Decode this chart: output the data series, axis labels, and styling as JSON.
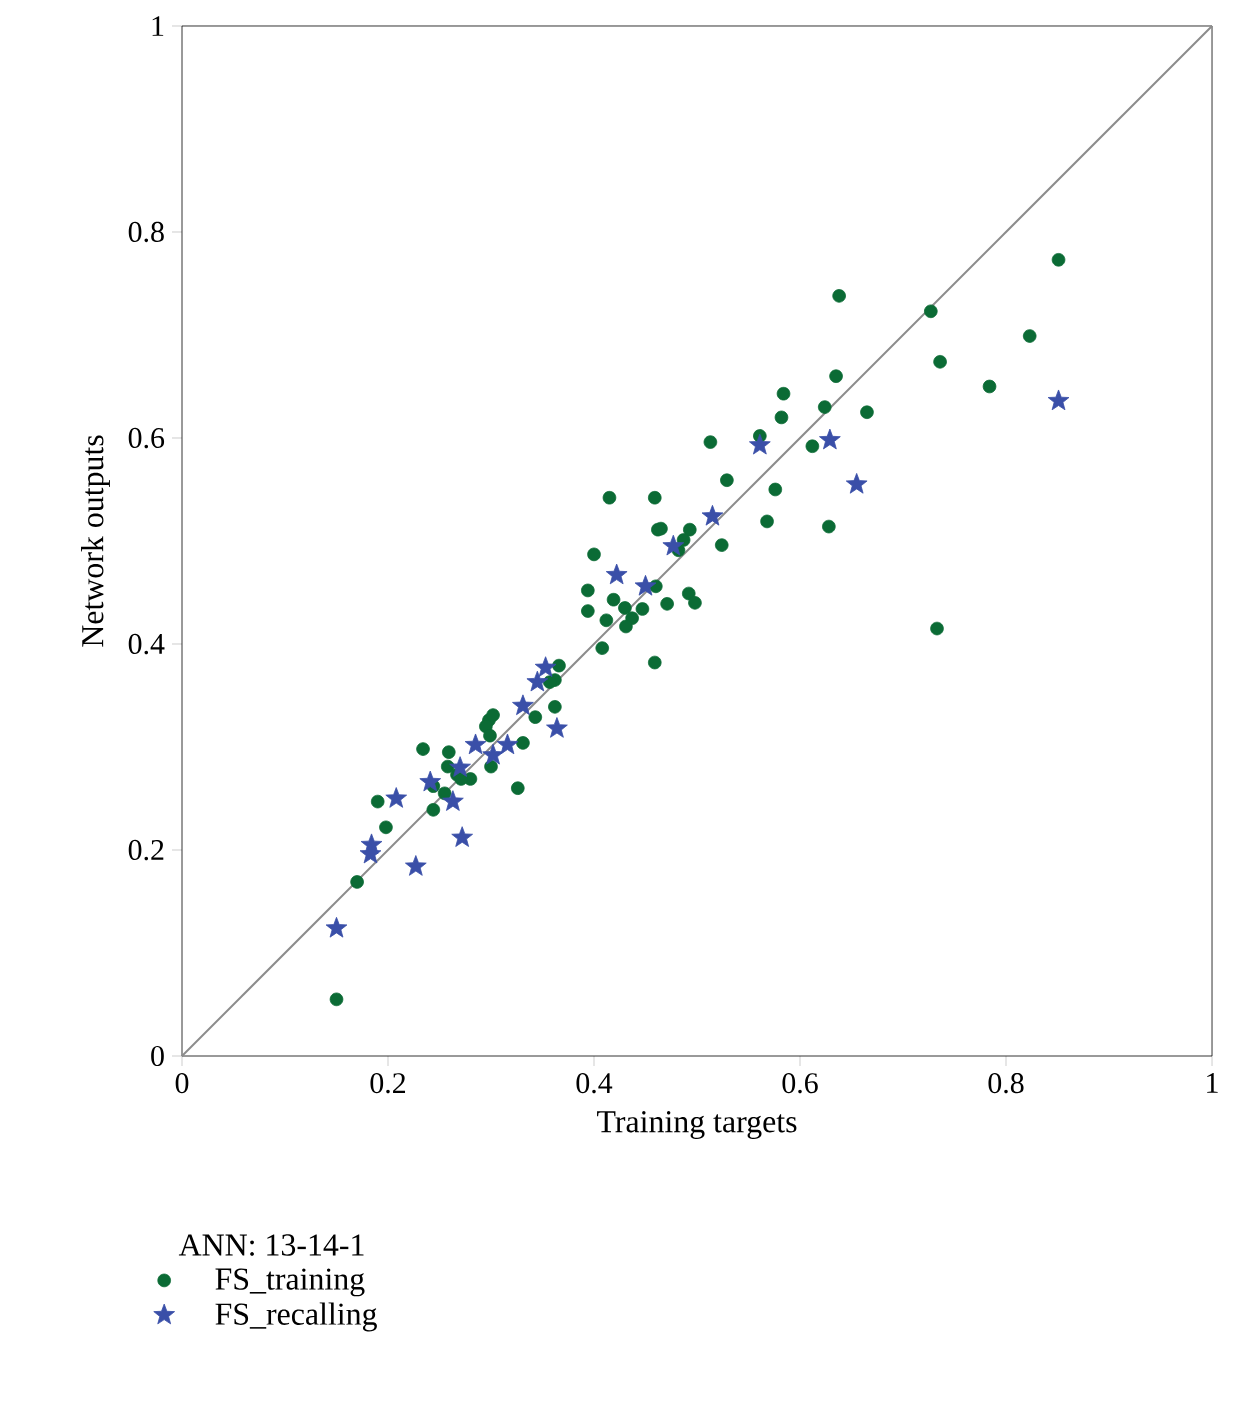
{
  "chart_data": {
    "type": "scatter",
    "xlabel": "Training targets",
    "ylabel": "Network outputs",
    "legend_title": "ANN: 13-14-1",
    "legend": "bottom left",
    "grid": false,
    "xlim": [
      0,
      1
    ],
    "ylim": [
      0,
      1
    ],
    "xticks": [
      0,
      0.2,
      0.4,
      0.6,
      0.8,
      1
    ],
    "yticks": [
      0,
      0.2,
      0.4,
      0.6,
      0.8,
      1
    ],
    "series": [
      {
        "name": "FS_training",
        "color": "#0b6b35",
        "marker": "circle",
        "x": [
          0.15,
          0.17,
          0.19,
          0.198,
          0.234,
          0.259,
          0.258,
          0.244,
          0.244,
          0.255,
          0.267,
          0.28,
          0.271,
          0.3,
          0.298,
          0.295,
          0.302,
          0.299,
          0.326,
          0.331,
          0.343,
          0.362,
          0.362,
          0.357,
          0.366,
          0.415,
          0.459,
          0.529,
          0.576,
          0.568,
          0.462,
          0.465,
          0.493,
          0.487,
          0.482,
          0.524,
          0.4,
          0.394,
          0.394,
          0.419,
          0.412,
          0.43,
          0.437,
          0.431,
          0.447,
          0.46,
          0.471,
          0.492,
          0.498,
          0.408,
          0.459,
          0.638,
          0.851,
          0.727,
          0.823,
          0.736,
          0.784,
          0.635,
          0.584,
          0.582,
          0.624,
          0.665,
          0.612,
          0.561,
          0.628,
          0.733,
          0.513
        ],
        "values": [
          0.055,
          0.169,
          0.247,
          0.222,
          0.298,
          0.295,
          0.281,
          0.262,
          0.239,
          0.255,
          0.273,
          0.269,
          0.269,
          0.281,
          0.326,
          0.32,
          0.331,
          0.311,
          0.26,
          0.304,
          0.329,
          0.339,
          0.365,
          0.363,
          0.379,
          0.542,
          0.542,
          0.559,
          0.55,
          0.519,
          0.511,
          0.512,
          0.511,
          0.501,
          0.491,
          0.496,
          0.487,
          0.452,
          0.432,
          0.443,
          0.423,
          0.435,
          0.425,
          0.417,
          0.434,
          0.456,
          0.439,
          0.449,
          0.44,
          0.396,
          0.382,
          0.738,
          0.773,
          0.723,
          0.699,
          0.674,
          0.65,
          0.66,
          0.643,
          0.62,
          0.63,
          0.625,
          0.592,
          0.602,
          0.514,
          0.415,
          0.596
        ]
      },
      {
        "name": "FS_recalling",
        "color": "#3a4fa8",
        "marker": "star",
        "x": [
          0.15,
          0.184,
          0.183,
          0.208,
          0.227,
          0.241,
          0.263,
          0.272,
          0.27,
          0.285,
          0.302,
          0.316,
          0.331,
          0.364,
          0.345,
          0.353,
          0.422,
          0.45,
          0.477,
          0.515,
          0.629,
          0.655,
          0.851,
          0.561
        ],
        "values": [
          0.124,
          0.205,
          0.196,
          0.25,
          0.184,
          0.266,
          0.247,
          0.212,
          0.28,
          0.302,
          0.292,
          0.302,
          0.34,
          0.318,
          0.363,
          0.377,
          0.467,
          0.456,
          0.495,
          0.524,
          0.598,
          0.555,
          0.636,
          0.593
        ]
      },
      {
        "type": "line",
        "color": "#8c8c8c",
        "marker": "none",
        "x": [
          0,
          1
        ],
        "values": [
          0,
          1
        ]
      }
    ]
  }
}
